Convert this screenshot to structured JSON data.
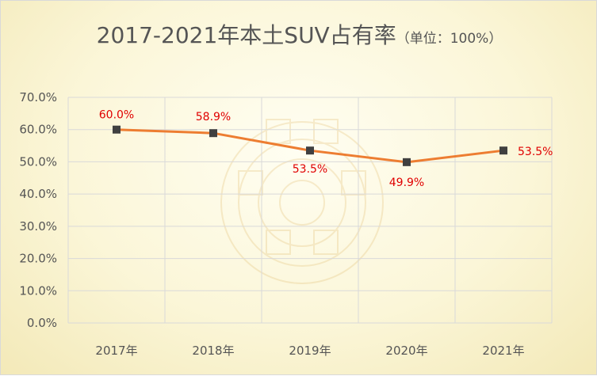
{
  "chart_data": {
    "type": "line",
    "title": "2017-2021年本土SUV占有率",
    "subtitle": "（单位：100%）",
    "categories": [
      "2017年",
      "2018年",
      "2019年",
      "2020年",
      "2021年"
    ],
    "series": [
      {
        "values": [
          60.0,
          58.9,
          53.5,
          49.9,
          53.5
        ],
        "labels": [
          "60.0%",
          "58.9%",
          "53.5%",
          "49.9%",
          "53.5%"
        ]
      }
    ],
    "ylim": [
      0,
      70
    ],
    "yticks": [
      "0.0%",
      "10.0%",
      "20.0%",
      "30.0%",
      "40.0%",
      "50.0%",
      "60.0%",
      "70.0%"
    ],
    "grid": true,
    "colors": {
      "line": "#ed7d31",
      "marker": "#404040",
      "data_label": "#e00000"
    }
  }
}
